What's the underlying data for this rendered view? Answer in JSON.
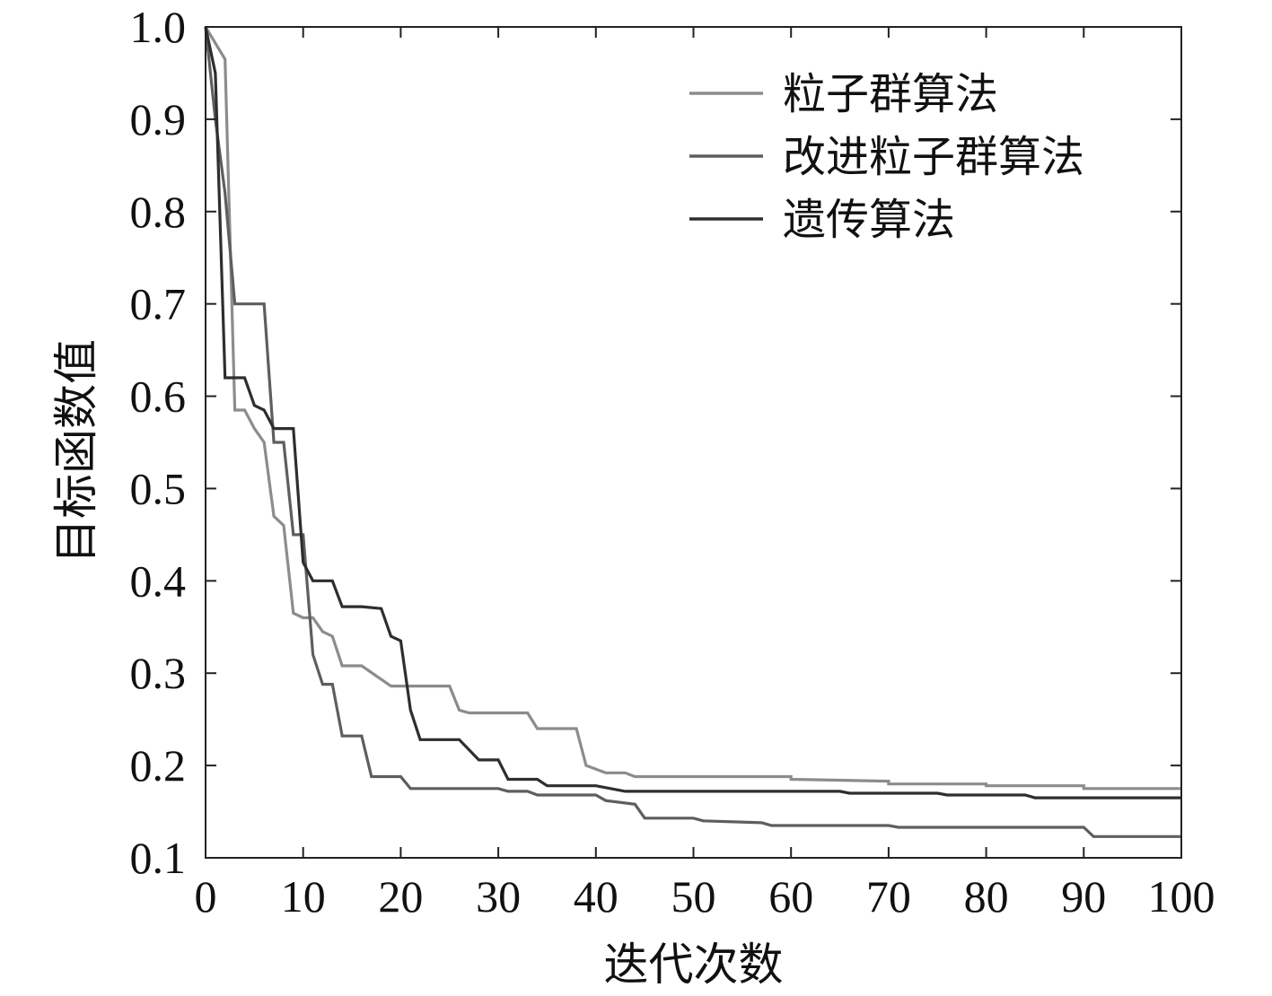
{
  "chart_data": {
    "type": "line",
    "title": "",
    "xlabel": "迭代次数",
    "ylabel": "目标函数值",
    "xlim": [
      0,
      100
    ],
    "ylim": [
      0.1,
      1.0
    ],
    "xticks": [
      0,
      10,
      20,
      30,
      40,
      50,
      60,
      70,
      80,
      90,
      100
    ],
    "xtick_labels": [
      "0",
      "10",
      "20",
      "30",
      "40",
      "50",
      "60",
      "70",
      "80",
      "90",
      "100"
    ],
    "yticks": [
      0.1,
      0.2,
      0.3,
      0.4,
      0.5,
      0.6,
      0.7,
      0.8,
      0.9,
      1.0
    ],
    "ytick_labels": [
      "0.1",
      "0.2",
      "0.3",
      "0.4",
      "0.5",
      "0.6",
      "0.7",
      "0.8",
      "0.9",
      "1.0"
    ],
    "grid": false,
    "legend_position": "top-right",
    "series": [
      {
        "name": "粒子群算法",
        "color": "#8c8c8c",
        "points": [
          [
            0,
            1.0
          ],
          [
            2,
            0.965
          ],
          [
            3,
            0.585
          ],
          [
            4,
            0.585
          ],
          [
            5,
            0.565
          ],
          [
            6,
            0.55
          ],
          [
            7,
            0.47
          ],
          [
            8,
            0.46
          ],
          [
            9,
            0.365
          ],
          [
            10,
            0.36
          ],
          [
            11,
            0.36
          ],
          [
            12,
            0.345
          ],
          [
            13,
            0.34
          ],
          [
            14,
            0.308
          ],
          [
            16,
            0.308
          ],
          [
            19,
            0.286
          ],
          [
            25,
            0.286
          ],
          [
            26,
            0.26
          ],
          [
            27,
            0.257
          ],
          [
            33,
            0.257
          ],
          [
            34,
            0.24
          ],
          [
            38,
            0.24
          ],
          [
            39,
            0.2
          ],
          [
            41,
            0.192
          ],
          [
            43,
            0.192
          ],
          [
            44,
            0.188
          ],
          [
            60,
            0.188
          ],
          [
            60,
            0.185
          ],
          [
            70,
            0.183
          ],
          [
            70,
            0.18
          ],
          [
            80,
            0.18
          ],
          [
            80,
            0.178
          ],
          [
            90,
            0.178
          ],
          [
            90,
            0.175
          ],
          [
            100,
            0.175
          ]
        ]
      },
      {
        "name": "改进粒子群算法",
        "color": "#5e5e5e",
        "points": [
          [
            0,
            1.0
          ],
          [
            1,
            0.9
          ],
          [
            2,
            0.82
          ],
          [
            3,
            0.7
          ],
          [
            6,
            0.7
          ],
          [
            7,
            0.55
          ],
          [
            8,
            0.55
          ],
          [
            9,
            0.45
          ],
          [
            10,
            0.45
          ],
          [
            11,
            0.32
          ],
          [
            12,
            0.288
          ],
          [
            13,
            0.288
          ],
          [
            14,
            0.232
          ],
          [
            16,
            0.232
          ],
          [
            17,
            0.188
          ],
          [
            20,
            0.188
          ],
          [
            21,
            0.175
          ],
          [
            30,
            0.175
          ],
          [
            31,
            0.172
          ],
          [
            33,
            0.172
          ],
          [
            34,
            0.168
          ],
          [
            40,
            0.168
          ],
          [
            41,
            0.162
          ],
          [
            44,
            0.158
          ],
          [
            45,
            0.143
          ],
          [
            50,
            0.143
          ],
          [
            51,
            0.14
          ],
          [
            57,
            0.138
          ],
          [
            58,
            0.135
          ],
          [
            70,
            0.135
          ],
          [
            71,
            0.133
          ],
          [
            90,
            0.133
          ],
          [
            91,
            0.123
          ],
          [
            100,
            0.123
          ]
        ]
      },
      {
        "name": "遗传算法",
        "color": "#2e2e2e",
        "points": [
          [
            0,
            1.0
          ],
          [
            1,
            0.95
          ],
          [
            2,
            0.62
          ],
          [
            4,
            0.62
          ],
          [
            5,
            0.59
          ],
          [
            6,
            0.585
          ],
          [
            7,
            0.565
          ],
          [
            9,
            0.565
          ],
          [
            10,
            0.42
          ],
          [
            11,
            0.4
          ],
          [
            13,
            0.4
          ],
          [
            14,
            0.372
          ],
          [
            16,
            0.372
          ],
          [
            18,
            0.37
          ],
          [
            19,
            0.34
          ],
          [
            20,
            0.335
          ],
          [
            21,
            0.26
          ],
          [
            22,
            0.228
          ],
          [
            26,
            0.228
          ],
          [
            28,
            0.206
          ],
          [
            30,
            0.206
          ],
          [
            31,
            0.185
          ],
          [
            34,
            0.185
          ],
          [
            35,
            0.178
          ],
          [
            40,
            0.178
          ],
          [
            43,
            0.172
          ],
          [
            65,
            0.172
          ],
          [
            66,
            0.17
          ],
          [
            75,
            0.17
          ],
          [
            76,
            0.168
          ],
          [
            84,
            0.168
          ],
          [
            85,
            0.165
          ],
          [
            100,
            0.165
          ]
        ]
      }
    ]
  }
}
